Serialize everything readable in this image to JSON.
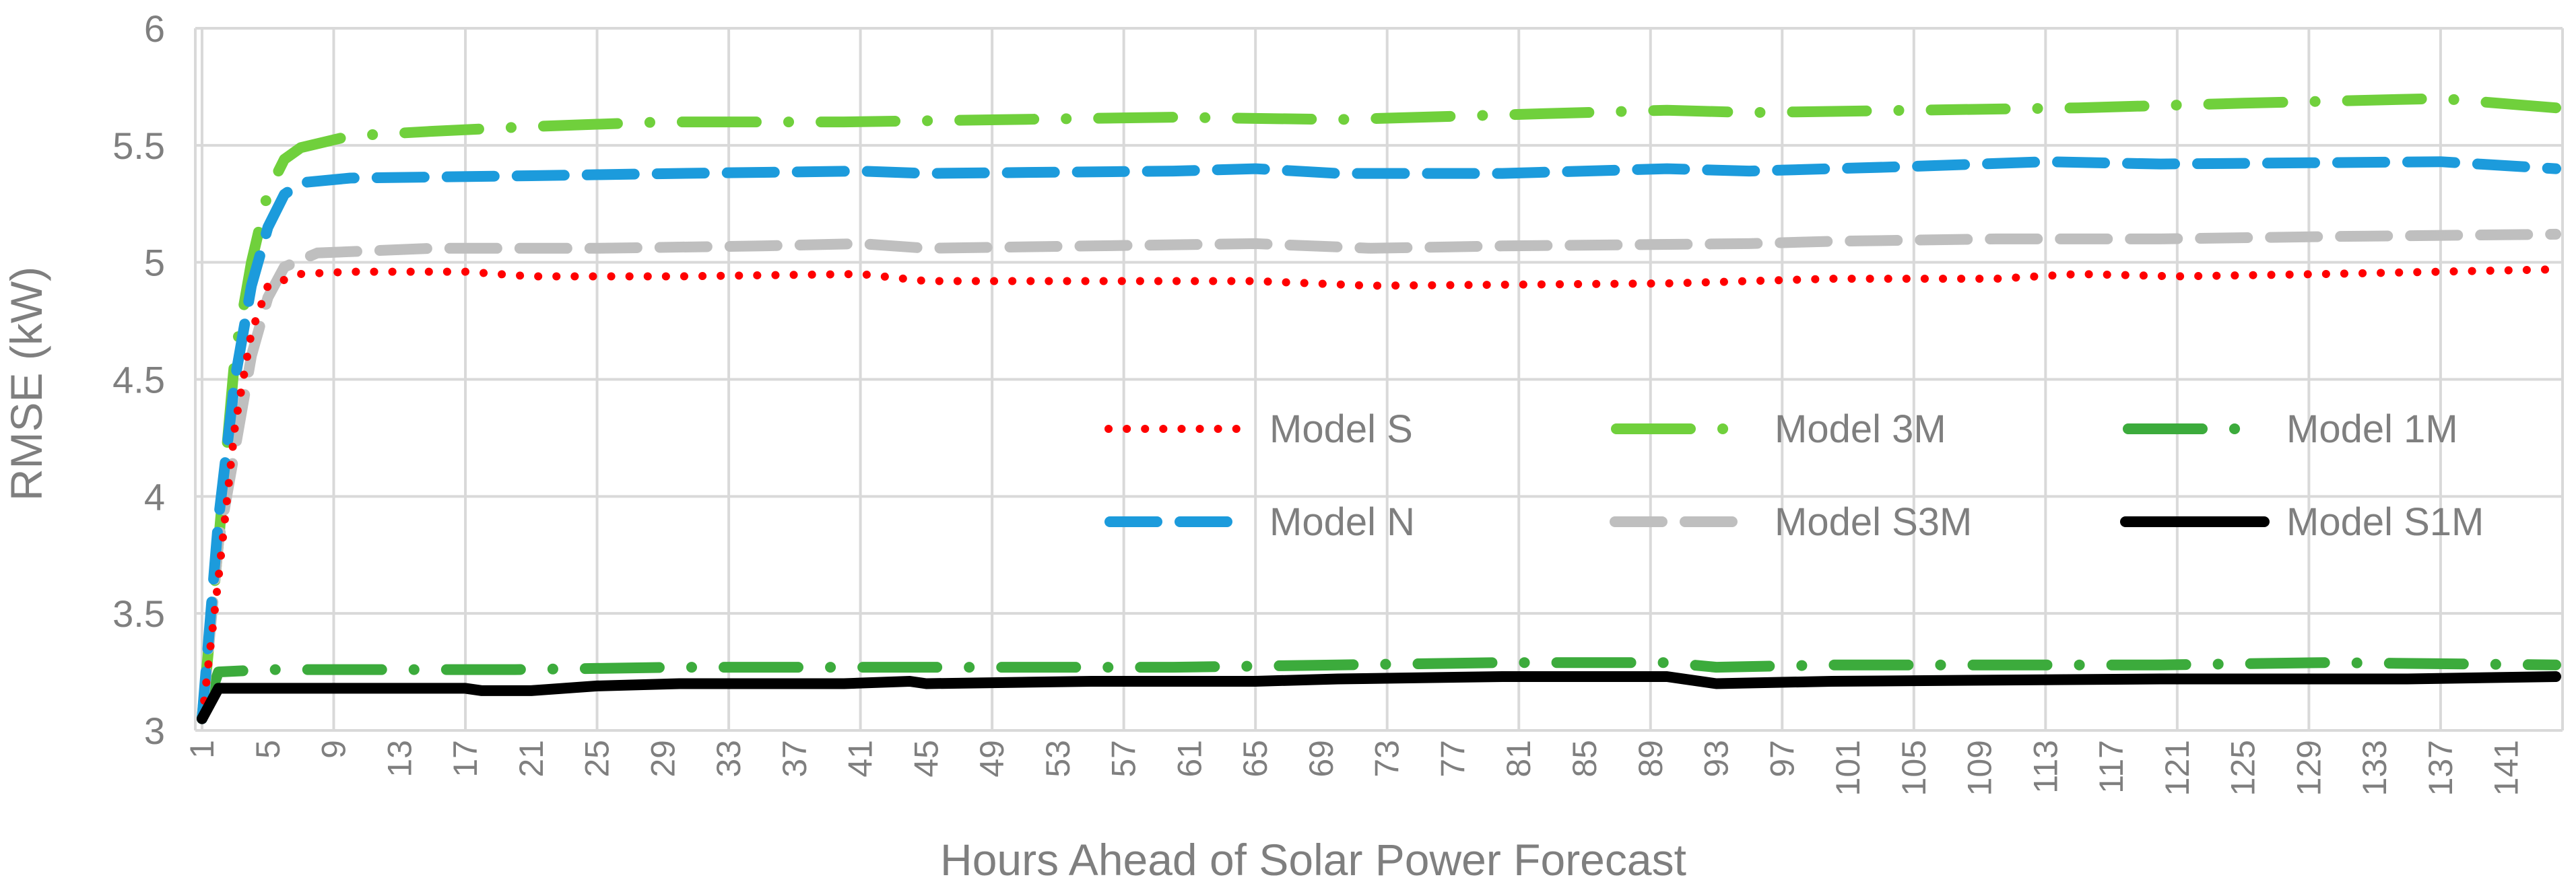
{
  "chart_data": {
    "type": "line",
    "title": "",
    "xlabel": "Hours Ahead of Solar Power Forecast",
    "ylabel": "RMSE (kW)",
    "ylim": [
      3,
      6
    ],
    "yticks": [
      "3",
      "3.5",
      "4",
      "4.5",
      "5",
      "5.5",
      "6"
    ],
    "xlim": [
      1,
      144
    ],
    "xticks": [
      "1",
      "5",
      "9",
      "13",
      "17",
      "21",
      "25",
      "29",
      "33",
      "37",
      "41",
      "45",
      "49",
      "53",
      "57",
      "61",
      "65",
      "69",
      "73",
      "77",
      "81",
      "85",
      "89",
      "93",
      "97",
      "101",
      "105",
      "109",
      "113",
      "117",
      "121",
      "125",
      "129",
      "133",
      "137",
      "141"
    ],
    "grid": true,
    "legend_position": "center-right",
    "series": [
      {
        "name": "Model S",
        "color": "#ff0000",
        "style": "dotted",
        "points": [
          [
            1,
            3.05
          ],
          [
            2,
            3.65
          ],
          [
            3,
            4.3
          ],
          [
            4,
            4.7
          ],
          [
            5,
            4.9
          ],
          [
            7,
            4.95
          ],
          [
            10,
            4.96
          ],
          [
            17,
            4.96
          ],
          [
            21,
            4.94
          ],
          [
            30,
            4.94
          ],
          [
            41,
            4.95
          ],
          [
            45,
            4.92
          ],
          [
            55,
            4.92
          ],
          [
            65,
            4.92
          ],
          [
            72,
            4.9
          ],
          [
            90,
            4.91
          ],
          [
            100,
            4.93
          ],
          [
            110,
            4.93
          ],
          [
            115,
            4.95
          ],
          [
            121,
            4.94
          ],
          [
            130,
            4.95
          ],
          [
            144,
            4.97
          ]
        ]
      },
      {
        "name": "Model 3M",
        "color": "#70d03c",
        "style": "longdash-dot",
        "points": [
          [
            1,
            3.05
          ],
          [
            2,
            3.8
          ],
          [
            3,
            4.6
          ],
          [
            4,
            5.0
          ],
          [
            5,
            5.3
          ],
          [
            6,
            5.44
          ],
          [
            7,
            5.49
          ],
          [
            10,
            5.54
          ],
          [
            15,
            5.56
          ],
          [
            21,
            5.58
          ],
          [
            29,
            5.6
          ],
          [
            40,
            5.6
          ],
          [
            50,
            5.61
          ],
          [
            60,
            5.62
          ],
          [
            70,
            5.61
          ],
          [
            80,
            5.63
          ],
          [
            90,
            5.65
          ],
          [
            95,
            5.64
          ],
          [
            105,
            5.65
          ],
          [
            115,
            5.66
          ],
          [
            125,
            5.68
          ],
          [
            137,
            5.7
          ],
          [
            144,
            5.66
          ]
        ]
      },
      {
        "name": "Model 1M",
        "color": "#3cab3c",
        "style": "longdash-dot",
        "points": [
          [
            1,
            3.05
          ],
          [
            2,
            3.25
          ],
          [
            5,
            3.26
          ],
          [
            20,
            3.26
          ],
          [
            30,
            3.27
          ],
          [
            40,
            3.27
          ],
          [
            50,
            3.27
          ],
          [
            60,
            3.27
          ],
          [
            70,
            3.28
          ],
          [
            80,
            3.29
          ],
          [
            90,
            3.29
          ],
          [
            93,
            3.27
          ],
          [
            100,
            3.28
          ],
          [
            110,
            3.28
          ],
          [
            120,
            3.28
          ],
          [
            130,
            3.29
          ],
          [
            144,
            3.28
          ]
        ]
      },
      {
        "name": "Model N",
        "color": "#1c9bdc",
        "style": "dashed",
        "points": [
          [
            1,
            3.05
          ],
          [
            2,
            3.9
          ],
          [
            3,
            4.5
          ],
          [
            4,
            4.9
          ],
          [
            5,
            5.15
          ],
          [
            6,
            5.29
          ],
          [
            7,
            5.34
          ],
          [
            10,
            5.36
          ],
          [
            21,
            5.37
          ],
          [
            30,
            5.38
          ],
          [
            41,
            5.39
          ],
          [
            45,
            5.38
          ],
          [
            60,
            5.39
          ],
          [
            65,
            5.4
          ],
          [
            70,
            5.38
          ],
          [
            80,
            5.38
          ],
          [
            90,
            5.4
          ],
          [
            95,
            5.39
          ],
          [
            105,
            5.41
          ],
          [
            113,
            5.43
          ],
          [
            120,
            5.42
          ],
          [
            137,
            5.43
          ],
          [
            144,
            5.4
          ]
        ]
      },
      {
        "name": "Model S3M",
        "color": "#bfbfbf",
        "style": "dashed",
        "points": [
          [
            1,
            3.05
          ],
          [
            2,
            3.8
          ],
          [
            3,
            4.2
          ],
          [
            4,
            4.6
          ],
          [
            5,
            4.85
          ],
          [
            6,
            4.98
          ],
          [
            8,
            5.04
          ],
          [
            15,
            5.06
          ],
          [
            25,
            5.06
          ],
          [
            35,
            5.07
          ],
          [
            41,
            5.08
          ],
          [
            45,
            5.06
          ],
          [
            55,
            5.07
          ],
          [
            65,
            5.08
          ],
          [
            72,
            5.06
          ],
          [
            80,
            5.07
          ],
          [
            95,
            5.08
          ],
          [
            100,
            5.09
          ],
          [
            110,
            5.1
          ],
          [
            120,
            5.1
          ],
          [
            130,
            5.11
          ],
          [
            144,
            5.12
          ]
        ]
      },
      {
        "name": "Model S1M",
        "color": "#000000",
        "style": "solid",
        "points": [
          [
            1,
            3.05
          ],
          [
            2,
            3.18
          ],
          [
            5,
            3.18
          ],
          [
            17,
            3.18
          ],
          [
            18,
            3.17
          ],
          [
            21,
            3.17
          ],
          [
            25,
            3.19
          ],
          [
            30,
            3.2
          ],
          [
            40,
            3.2
          ],
          [
            44,
            3.21
          ],
          [
            45,
            3.2
          ],
          [
            55,
            3.21
          ],
          [
            65,
            3.21
          ],
          [
            70,
            3.22
          ],
          [
            80,
            3.23
          ],
          [
            90,
            3.23
          ],
          [
            93,
            3.2
          ],
          [
            100,
            3.21
          ],
          [
            120,
            3.22
          ],
          [
            135,
            3.22
          ],
          [
            144,
            3.23
          ]
        ]
      }
    ]
  }
}
